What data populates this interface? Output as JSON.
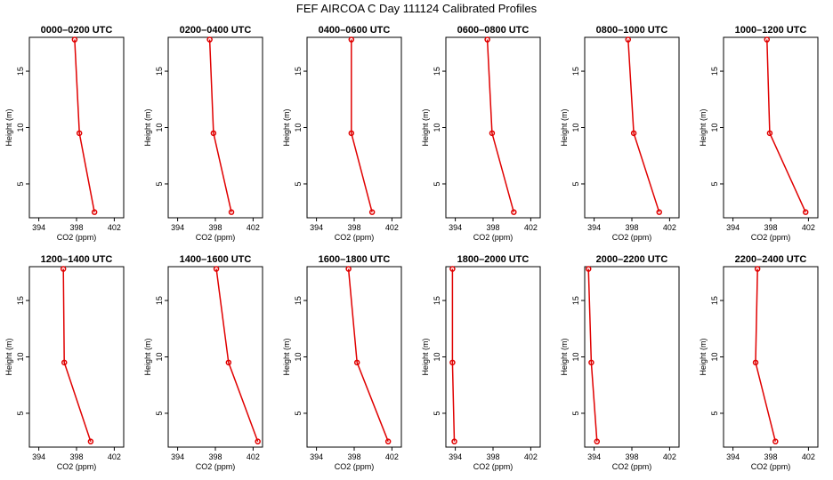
{
  "figure": {
    "title": "FEF AIRCOA C  Day 111124  Calibrated Profiles"
  },
  "chart_data": [
    {
      "type": "line",
      "title": "0000–0200 UTC",
      "xlabel": "CO2 (ppm)",
      "ylabel": "Height (m)",
      "xlim": [
        393,
        403
      ],
      "ylim": [
        2,
        18
      ],
      "xticks": [
        394,
        398,
        402
      ],
      "yticks": [
        5,
        10,
        15
      ],
      "grid": false,
      "series": [
        {
          "x": [
            397.8,
            398.3,
            399.9
          ],
          "y": [
            17.8,
            9.5,
            2.5
          ]
        }
      ]
    },
    {
      "type": "line",
      "title": "0200–0400 UTC",
      "xlabel": "CO2 (ppm)",
      "ylabel": "Height (m)",
      "xlim": [
        393,
        403
      ],
      "ylim": [
        2,
        18
      ],
      "xticks": [
        394,
        398,
        402
      ],
      "yticks": [
        5,
        10,
        15
      ],
      "grid": false,
      "series": [
        {
          "x": [
            397.4,
            397.8,
            399.7
          ],
          "y": [
            17.8,
            9.5,
            2.5
          ]
        }
      ]
    },
    {
      "type": "line",
      "title": "0400–0600 UTC",
      "xlabel": "CO2 (ppm)",
      "ylabel": "Height (m)",
      "xlim": [
        393,
        403
      ],
      "ylim": [
        2,
        18
      ],
      "xticks": [
        394,
        398,
        402
      ],
      "yticks": [
        5,
        10,
        15
      ],
      "grid": false,
      "series": [
        {
          "x": [
            397.7,
            397.7,
            399.9
          ],
          "y": [
            17.8,
            9.5,
            2.5
          ]
        }
      ]
    },
    {
      "type": "line",
      "title": "0600–0800 UTC",
      "xlabel": "CO2 (ppm)",
      "ylabel": "Height (m)",
      "xlim": [
        393,
        403
      ],
      "ylim": [
        2,
        18
      ],
      "xticks": [
        394,
        398,
        402
      ],
      "yticks": [
        5,
        10,
        15
      ],
      "grid": false,
      "series": [
        {
          "x": [
            397.4,
            397.9,
            400.2
          ],
          "y": [
            17.8,
            9.5,
            2.5
          ]
        }
      ]
    },
    {
      "type": "line",
      "title": "0800–1000 UTC",
      "xlabel": "CO2 (ppm)",
      "ylabel": "Height (m)",
      "xlim": [
        393,
        403
      ],
      "ylim": [
        2,
        18
      ],
      "xticks": [
        394,
        398,
        402
      ],
      "yticks": [
        5,
        10,
        15
      ],
      "grid": false,
      "series": [
        {
          "x": [
            397.6,
            398.2,
            400.9
          ],
          "y": [
            17.8,
            9.5,
            2.5
          ]
        }
      ]
    },
    {
      "type": "line",
      "title": "1000–1200 UTC",
      "xlabel": "CO2 (ppm)",
      "ylabel": "Height (m)",
      "xlim": [
        393,
        403
      ],
      "ylim": [
        2,
        18
      ],
      "xticks": [
        394,
        398,
        402
      ],
      "yticks": [
        5,
        10,
        15
      ],
      "grid": false,
      "series": [
        {
          "x": [
            397.6,
            397.9,
            401.7
          ],
          "y": [
            17.8,
            9.5,
            2.5
          ]
        }
      ]
    },
    {
      "type": "line",
      "title": "1200–1400 UTC",
      "xlabel": "CO2 (ppm)",
      "ylabel": "Height (m)",
      "xlim": [
        393,
        403
      ],
      "ylim": [
        2,
        18
      ],
      "xticks": [
        394,
        398,
        402
      ],
      "yticks": [
        5,
        10,
        15
      ],
      "grid": false,
      "series": [
        {
          "x": [
            396.6,
            396.7,
            399.5
          ],
          "y": [
            17.8,
            9.5,
            2.5
          ]
        }
      ]
    },
    {
      "type": "line",
      "title": "1400–1600 UTC",
      "xlabel": "CO2 (ppm)",
      "ylabel": "Height (m)",
      "xlim": [
        393,
        403
      ],
      "ylim": [
        2,
        18
      ],
      "xticks": [
        394,
        398,
        402
      ],
      "yticks": [
        5,
        10,
        15
      ],
      "grid": false,
      "series": [
        {
          "x": [
            398.1,
            399.4,
            402.5
          ],
          "y": [
            17.8,
            9.5,
            2.5
          ]
        }
      ]
    },
    {
      "type": "line",
      "title": "1600–1800 UTC",
      "xlabel": "CO2 (ppm)",
      "ylabel": "Height (m)",
      "xlim": [
        393,
        403
      ],
      "ylim": [
        2,
        18
      ],
      "xticks": [
        394,
        398,
        402
      ],
      "yticks": [
        5,
        10,
        15
      ],
      "grid": false,
      "series": [
        {
          "x": [
            397.4,
            398.3,
            401.6
          ],
          "y": [
            17.8,
            9.5,
            2.5
          ]
        }
      ]
    },
    {
      "type": "line",
      "title": "1800–2000 UTC",
      "xlabel": "CO2 (ppm)",
      "ylabel": "Height (m)",
      "xlim": [
        393,
        403
      ],
      "ylim": [
        2,
        18
      ],
      "xticks": [
        394,
        398,
        402
      ],
      "yticks": [
        5,
        10,
        15
      ],
      "grid": false,
      "series": [
        {
          "x": [
            393.7,
            393.7,
            393.9
          ],
          "y": [
            17.8,
            9.5,
            2.5
          ]
        }
      ]
    },
    {
      "type": "line",
      "title": "2000–2200 UTC",
      "xlabel": "CO2 (ppm)",
      "ylabel": "Height (m)",
      "xlim": [
        393,
        403
      ],
      "ylim": [
        2,
        18
      ],
      "xticks": [
        394,
        398,
        402
      ],
      "yticks": [
        5,
        10,
        15
      ],
      "grid": false,
      "series": [
        {
          "x": [
            393.4,
            393.7,
            394.3
          ],
          "y": [
            17.8,
            9.5,
            2.5
          ]
        }
      ]
    },
    {
      "type": "line",
      "title": "2200–2400 UTC",
      "xlabel": "CO2 (ppm)",
      "ylabel": "Height (m)",
      "xlim": [
        393,
        403
      ],
      "ylim": [
        2,
        18
      ],
      "xticks": [
        394,
        398,
        402
      ],
      "yticks": [
        5,
        10,
        15
      ],
      "grid": false,
      "series": [
        {
          "x": [
            396.6,
            396.4,
            398.5
          ],
          "y": [
            17.8,
            9.5,
            2.5
          ]
        }
      ]
    }
  ]
}
